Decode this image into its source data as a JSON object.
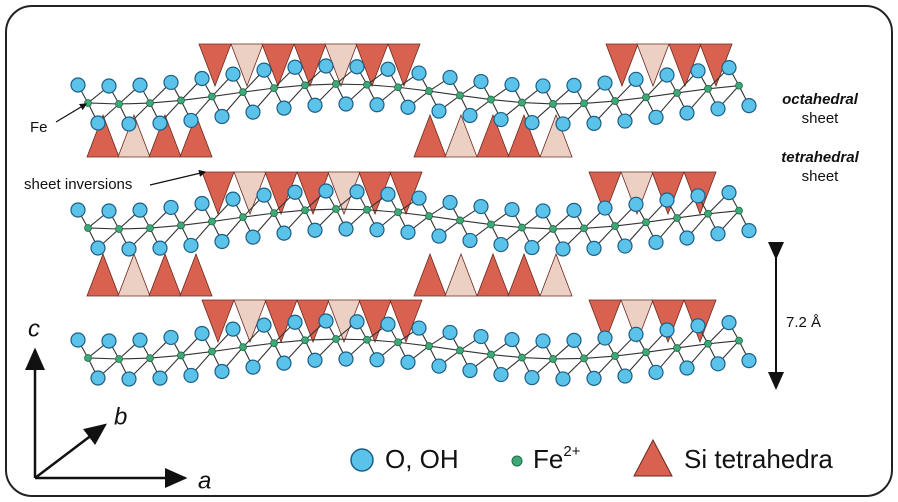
{
  "labels": {
    "fe": "Fe",
    "sheet_inversions": "sheet inversions",
    "octahedral": "octahedral",
    "octahedral_sheet": "sheet",
    "tetrahedral": "tetrahedral",
    "tetrahedral_sheet": "sheet",
    "spacing": "7.2 Å"
  },
  "axes": {
    "c": "c",
    "b": "b",
    "a": "a"
  },
  "legend": [
    {
      "label": "O, OH"
    },
    {
      "label": "Fe",
      "superscript": "2+"
    },
    {
      "label": "Si tetrahedra"
    }
  ]
}
